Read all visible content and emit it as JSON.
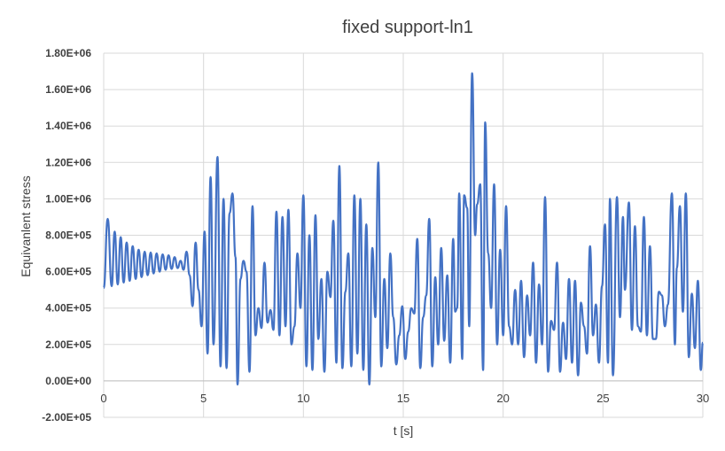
{
  "chart_data": {
    "type": "line",
    "title": "fixed support-ln1",
    "xlabel": "t [s]",
    "ylabel": "Equivanlent stress",
    "xlim": [
      0,
      30
    ],
    "ylim": [
      -200000,
      1800000
    ],
    "x_ticks": [
      0,
      5,
      10,
      15,
      20,
      25,
      30
    ],
    "x_tick_labels": [
      "0",
      "5",
      "10",
      "15",
      "20",
      "25",
      "30"
    ],
    "y_ticks": [
      -200000,
      0,
      200000,
      400000,
      600000,
      800000,
      1000000,
      1200000,
      1400000,
      1600000,
      1800000
    ],
    "y_tick_labels": [
      "-2.00E+05",
      "0.00E+00",
      "2.00E+05",
      "4.00E+05",
      "6.00E+05",
      "8.00E+05",
      "1.00E+06",
      "1.20E+06",
      "1.40E+06",
      "1.60E+06",
      "1.80E+06"
    ],
    "grid": true,
    "legend": "none",
    "line_color": "#4472c4",
    "series": [
      {
        "values": [
          [
            0.0,
            510000
          ],
          [
            0.2,
            890000
          ],
          [
            0.4,
            520000
          ],
          [
            0.55,
            820000
          ],
          [
            0.7,
            530000
          ],
          [
            0.85,
            790000
          ],
          [
            1.0,
            540000
          ],
          [
            1.15,
            760000
          ],
          [
            1.3,
            550000
          ],
          [
            1.45,
            740000
          ],
          [
            1.6,
            560000
          ],
          [
            1.75,
            720000
          ],
          [
            1.9,
            570000
          ],
          [
            2.05,
            710000
          ],
          [
            2.2,
            580000
          ],
          [
            2.35,
            705000
          ],
          [
            2.5,
            590000
          ],
          [
            2.65,
            700000
          ],
          [
            2.8,
            600000
          ],
          [
            2.95,
            695000
          ],
          [
            3.1,
            610000
          ],
          [
            3.25,
            690000
          ],
          [
            3.4,
            615000
          ],
          [
            3.55,
            680000
          ],
          [
            3.7,
            620000
          ],
          [
            3.85,
            660000
          ],
          [
            4.0,
            610000
          ],
          [
            4.15,
            710000
          ],
          [
            4.3,
            580000
          ],
          [
            4.45,
            410000
          ],
          [
            4.6,
            760000
          ],
          [
            4.75,
            500000
          ],
          [
            4.9,
            300000
          ],
          [
            5.05,
            820000
          ],
          [
            5.2,
            150000
          ],
          [
            5.35,
            1120000
          ],
          [
            5.5,
            200000
          ],
          [
            5.7,
            1230000
          ],
          [
            5.85,
            80000
          ],
          [
            6.0,
            1000000
          ],
          [
            6.15,
            70000
          ],
          [
            6.3,
            920000
          ],
          [
            6.45,
            1030000
          ],
          [
            6.6,
            680000
          ],
          [
            6.7,
            -20000
          ],
          [
            6.85,
            560000
          ],
          [
            7.0,
            660000
          ],
          [
            7.15,
            600000
          ],
          [
            7.3,
            50000
          ],
          [
            7.45,
            960000
          ],
          [
            7.6,
            250000
          ],
          [
            7.75,
            400000
          ],
          [
            7.9,
            290000
          ],
          [
            8.05,
            650000
          ],
          [
            8.2,
            320000
          ],
          [
            8.35,
            390000
          ],
          [
            8.5,
            280000
          ],
          [
            8.65,
            930000
          ],
          [
            8.8,
            250000
          ],
          [
            8.95,
            900000
          ],
          [
            9.1,
            300000
          ],
          [
            9.25,
            940000
          ],
          [
            9.4,
            200000
          ],
          [
            9.55,
            300000
          ],
          [
            9.7,
            700000
          ],
          [
            9.85,
            400000
          ],
          [
            10.0,
            1020000
          ],
          [
            10.15,
            80000
          ],
          [
            10.3,
            800000
          ],
          [
            10.45,
            60000
          ],
          [
            10.6,
            910000
          ],
          [
            10.75,
            230000
          ],
          [
            10.9,
            560000
          ],
          [
            11.05,
            50000
          ],
          [
            11.2,
            600000
          ],
          [
            11.35,
            460000
          ],
          [
            11.5,
            880000
          ],
          [
            11.65,
            100000
          ],
          [
            11.8,
            1180000
          ],
          [
            11.95,
            70000
          ],
          [
            12.1,
            490000
          ],
          [
            12.25,
            700000
          ],
          [
            12.4,
            80000
          ],
          [
            12.55,
            1020000
          ],
          [
            12.7,
            150000
          ],
          [
            12.85,
            1000000
          ],
          [
            13.0,
            60000
          ],
          [
            13.15,
            860000
          ],
          [
            13.3,
            -20000
          ],
          [
            13.45,
            730000
          ],
          [
            13.6,
            350000
          ],
          [
            13.75,
            1200000
          ],
          [
            13.9,
            80000
          ],
          [
            14.05,
            560000
          ],
          [
            14.2,
            180000
          ],
          [
            14.35,
            700000
          ],
          [
            14.5,
            350000
          ],
          [
            14.65,
            90000
          ],
          [
            14.8,
            250000
          ],
          [
            14.95,
            410000
          ],
          [
            15.1,
            120000
          ],
          [
            15.25,
            270000
          ],
          [
            15.4,
            400000
          ],
          [
            15.55,
            370000
          ],
          [
            15.7,
            780000
          ],
          [
            15.85,
            70000
          ],
          [
            16.0,
            350000
          ],
          [
            16.15,
            470000
          ],
          [
            16.3,
            890000
          ],
          [
            16.45,
            80000
          ],
          [
            16.6,
            570000
          ],
          [
            16.75,
            200000
          ],
          [
            16.9,
            730000
          ],
          [
            17.05,
            220000
          ],
          [
            17.2,
            580000
          ],
          [
            17.35,
            100000
          ],
          [
            17.5,
            780000
          ],
          [
            17.6,
            380000
          ],
          [
            17.7,
            400000
          ],
          [
            17.8,
            1030000
          ],
          [
            17.95,
            120000
          ],
          [
            18.05,
            1020000
          ],
          [
            18.2,
            950000
          ],
          [
            18.3,
            300000
          ],
          [
            18.45,
            1690000
          ],
          [
            18.6,
            800000
          ],
          [
            18.7,
            970000
          ],
          [
            18.85,
            1080000
          ],
          [
            19.0,
            60000
          ],
          [
            19.1,
            1420000
          ],
          [
            19.25,
            700000
          ],
          [
            19.4,
            400000
          ],
          [
            19.55,
            1080000
          ],
          [
            19.7,
            200000
          ],
          [
            19.85,
            720000
          ],
          [
            20.0,
            250000
          ],
          [
            20.15,
            960000
          ],
          [
            20.3,
            300000
          ],
          [
            20.45,
            200000
          ],
          [
            20.6,
            500000
          ],
          [
            20.75,
            200000
          ],
          [
            20.9,
            550000
          ],
          [
            21.05,
            130000
          ],
          [
            21.2,
            470000
          ],
          [
            21.35,
            250000
          ],
          [
            21.5,
            650000
          ],
          [
            21.65,
            100000
          ],
          [
            21.8,
            530000
          ],
          [
            21.95,
            200000
          ],
          [
            22.1,
            1010000
          ],
          [
            22.25,
            50000
          ],
          [
            22.4,
            330000
          ],
          [
            22.55,
            280000
          ],
          [
            22.7,
            650000
          ],
          [
            22.85,
            50000
          ],
          [
            23.0,
            320000
          ],
          [
            23.15,
            120000
          ],
          [
            23.3,
            560000
          ],
          [
            23.45,
            100000
          ],
          [
            23.6,
            550000
          ],
          [
            23.75,
            30000
          ],
          [
            23.9,
            430000
          ],
          [
            24.05,
            300000
          ],
          [
            24.2,
            150000
          ],
          [
            24.35,
            740000
          ],
          [
            24.5,
            250000
          ],
          [
            24.65,
            420000
          ],
          [
            24.8,
            100000
          ],
          [
            24.95,
            520000
          ],
          [
            25.1,
            860000
          ],
          [
            25.25,
            100000
          ],
          [
            25.35,
            1000000
          ],
          [
            25.5,
            30000
          ],
          [
            25.7,
            1010000
          ],
          [
            25.85,
            350000
          ],
          [
            26.0,
            900000
          ],
          [
            26.1,
            500000
          ],
          [
            26.3,
            980000
          ],
          [
            26.45,
            280000
          ],
          [
            26.6,
            850000
          ],
          [
            26.75,
            300000
          ],
          [
            26.9,
            270000
          ],
          [
            27.05,
            900000
          ],
          [
            27.2,
            250000
          ],
          [
            27.35,
            740000
          ],
          [
            27.5,
            230000
          ],
          [
            27.65,
            230000
          ],
          [
            27.8,
            490000
          ],
          [
            27.95,
            470000
          ],
          [
            28.1,
            300000
          ],
          [
            28.25,
            420000
          ],
          [
            28.45,
            1030000
          ],
          [
            28.6,
            200000
          ],
          [
            28.7,
            620000
          ],
          [
            28.85,
            960000
          ],
          [
            29.0,
            380000
          ],
          [
            29.15,
            1030000
          ],
          [
            29.3,
            130000
          ],
          [
            29.45,
            480000
          ],
          [
            29.6,
            180000
          ],
          [
            29.75,
            550000
          ],
          [
            29.9,
            60000
          ],
          [
            30.0,
            210000
          ]
        ]
      }
    ]
  }
}
